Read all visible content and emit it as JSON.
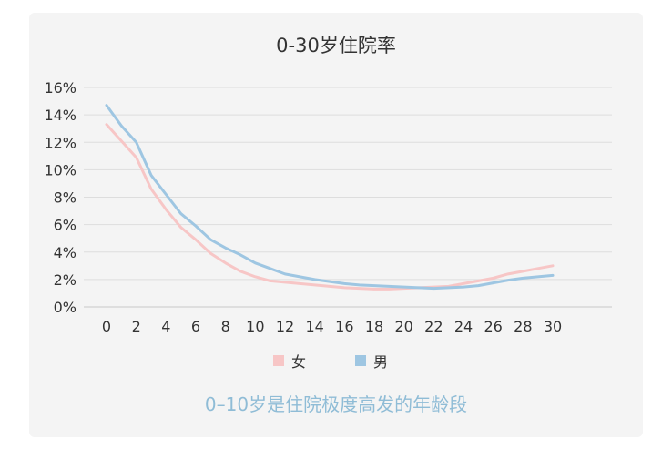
{
  "chart_data": {
    "type": "line",
    "title": "0-30岁住院率",
    "x": [
      0,
      1,
      2,
      3,
      4,
      5,
      6,
      7,
      8,
      9,
      10,
      11,
      12,
      13,
      14,
      15,
      16,
      17,
      18,
      19,
      20,
      21,
      22,
      23,
      24,
      25,
      26,
      27,
      28,
      29,
      30
    ],
    "x_ticks": [
      "0",
      "2",
      "4",
      "6",
      "8",
      "10",
      "12",
      "14",
      "16",
      "18",
      "20",
      "22",
      "24",
      "26",
      "28",
      "30"
    ],
    "y_ticks": [
      "0%",
      "2%",
      "4%",
      "6%",
      "8%",
      "10%",
      "12%",
      "14%",
      "16%"
    ],
    "ylim": [
      0,
      16
    ],
    "xlim": [
      0,
      30
    ],
    "grid": true,
    "legend_position": "bottom",
    "series": [
      {
        "name": "女",
        "color": "#f7c6c6",
        "values": [
          13.3,
          12.1,
          10.9,
          8.6,
          7.1,
          5.8,
          4.9,
          3.9,
          3.2,
          2.6,
          2.2,
          1.9,
          1.8,
          1.7,
          1.6,
          1.5,
          1.4,
          1.35,
          1.3,
          1.3,
          1.35,
          1.4,
          1.45,
          1.5,
          1.7,
          1.9,
          2.1,
          2.4,
          2.6,
          2.8,
          3.0
        ]
      },
      {
        "name": "男",
        "color": "#9ec6e2",
        "values": [
          14.7,
          13.2,
          12.0,
          9.6,
          8.2,
          6.8,
          5.9,
          4.9,
          4.3,
          3.8,
          3.2,
          2.8,
          2.4,
          2.2,
          2.0,
          1.85,
          1.7,
          1.6,
          1.55,
          1.5,
          1.45,
          1.4,
          1.35,
          1.4,
          1.45,
          1.55,
          1.75,
          1.95,
          2.1,
          2.2,
          2.3
        ]
      }
    ]
  },
  "annotation": "0–10岁是住院极度高发的年龄段"
}
